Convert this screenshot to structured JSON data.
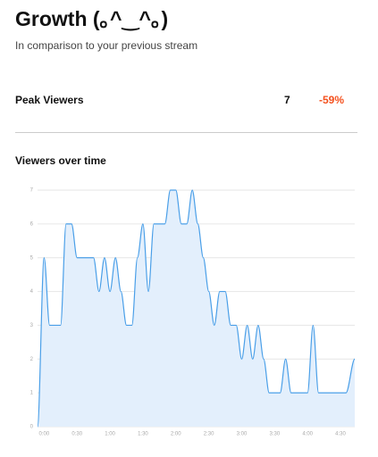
{
  "header": {
    "title": "Growth (｡^‿^｡)",
    "subtitle": "In comparison to your previous stream"
  },
  "stats": {
    "label": "Peak Viewers",
    "value": 7,
    "change": "-59%"
  },
  "chart_data": {
    "type": "area",
    "title": "Viewers over time",
    "color": "#4a9fe8",
    "fill": "#e3effc",
    "grid": true,
    "x": [
      -6,
      0,
      5,
      15,
      20,
      25,
      30,
      45,
      50,
      55,
      60,
      65,
      70,
      75,
      80,
      85,
      90,
      95,
      100,
      110,
      115,
      120,
      125,
      130,
      135,
      140,
      145,
      150,
      155,
      160,
      165,
      170,
      175,
      180,
      185,
      190,
      195,
      200,
      205,
      215,
      220,
      225,
      240,
      245,
      250,
      275,
      283
    ],
    "values": [
      0,
      5,
      3,
      3,
      6,
      6,
      5,
      5,
      4,
      5,
      4,
      5,
      4,
      3,
      3,
      5,
      6,
      4,
      6,
      6,
      7,
      7,
      6,
      6,
      7,
      6,
      5,
      4,
      3,
      4,
      4,
      3,
      3,
      2,
      3,
      2,
      3,
      2,
      1,
      1,
      2,
      1,
      1,
      3,
      1,
      1,
      2
    ],
    "xlim": [
      -6,
      283
    ],
    "xticks": [
      {
        "value": 0,
        "label": "0:00"
      },
      {
        "value": 30,
        "label": "0:30"
      },
      {
        "value": 60,
        "label": "1:00"
      },
      {
        "value": 90,
        "label": "1:30"
      },
      {
        "value": 120,
        "label": "2:00"
      },
      {
        "value": 150,
        "label": "2:30"
      },
      {
        "value": 180,
        "label": "3:00"
      },
      {
        "value": 210,
        "label": "3:30"
      },
      {
        "value": 240,
        "label": "4:00"
      },
      {
        "value": 270,
        "label": "4:30"
      }
    ],
    "ylim": [
      0,
      7
    ],
    "yticks": [
      0,
      1,
      2,
      3,
      4,
      5,
      6,
      7
    ]
  }
}
